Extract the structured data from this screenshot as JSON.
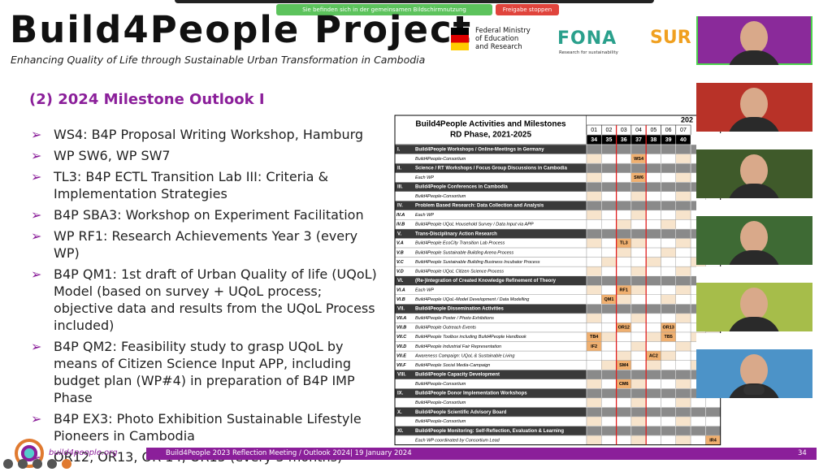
{
  "screen_share": {
    "notice": "Sie befinden sich in der gemeinsamen Bildschirmnutzung",
    "stop_button": "Freigabe stoppen"
  },
  "header": {
    "title": "Build4People Project",
    "subtitle": "Enhancing Quality of Life through Sustainable Urban Transformation in Cambodia"
  },
  "logos": {
    "ministry": [
      "Federal Ministry",
      "of Education",
      "and Research"
    ],
    "fona": "FONA",
    "fona_tagline": "Research for sustainability",
    "partial": "SUR"
  },
  "section_heading": "(2) 2024 Milestone Outlook I",
  "bullets": [
    "WS4: B4P Proposal Writing Workshop, Hamburg",
    "WP SW6, WP SW7",
    "TL3: B4P ECTL Transition Lab III: Criteria & Implementation Strategies",
    "B4P SBA3: Workshop on Experiment Facilitation",
    "WP RF1: Research Achievements Year 3 (every WP)",
    "B4P QM1: 1st draft of Urban Quality of life (UQoL) Model (based on survey + UQoL process; objective data and results from the UQoL Process included)",
    "B4P QM2: Feasibility study to grasp UQoL by means of Citizen Science Input APP, including budget plan (WP#4) in preparation of B4P IMP Phase",
    "B4P EX3: Photo Exhibition Sustainable Lifestyle Pioneers in Cambodia",
    "OR12, OR13, OR 14, OR15 (every 3 months)"
  ],
  "table": {
    "title": [
      "Build4People Activities and Milestones",
      "RD Phase, 2021-2025"
    ],
    "year": "202",
    "months": [
      "01",
      "02",
      "03",
      "04",
      "05",
      "06",
      "07"
    ],
    "weeks": [
      "34",
      "35",
      "36",
      "37",
      "38",
      "39",
      "40"
    ],
    "sections": [
      {
        "id": "I.",
        "label": "Build4People Workshops / Online-Meetings in Germany",
        "rows": [
          {
            "label": "Build4People-Consortium",
            "cells": [
              null,
              null,
              null,
              "WS4",
              null,
              null,
              null,
              null,
              null
            ]
          }
        ]
      },
      {
        "id": "II.",
        "label": "Science / RT Workshops / Focus Group Discussions in Cambodia",
        "rows": [
          {
            "label": "Each WP",
            "cells": [
              null,
              null,
              null,
              "SW6",
              null,
              null,
              null,
              null,
              null
            ]
          }
        ]
      },
      {
        "id": "III.",
        "label": "Build4People Conferences in Cambodia",
        "rows": [
          {
            "label": "Build4People-Consortium"
          }
        ]
      },
      {
        "id": "IV.",
        "label": "Problem Based Research: Data Collection and Analysis",
        "rows": [
          {
            "id": "IV.A",
            "label": "Each WP"
          },
          {
            "id": "IV.B",
            "label": "Build4People UQoL Household Survey / Data Input via APP"
          }
        ]
      },
      {
        "id": "V.",
        "label": "Trans-Disciplinary Action Research",
        "rows": [
          {
            "id": "V.A",
            "label": "Build4People EcoCity Transition Lab Process",
            "cells": [
              null,
              null,
              "TL3",
              null,
              null,
              null,
              null,
              null,
              null
            ]
          },
          {
            "id": "V.B",
            "label": "Build4People Sustainable Building Arena Process"
          },
          {
            "id": "V.C",
            "label": "Build4People Sustainable Building Business Incubator Process"
          },
          {
            "id": "V.D",
            "label": "Build4People UQoL Citizen Science Process"
          }
        ]
      },
      {
        "id": "VI.",
        "label": "(Re-)Integration of Created Knowledge Refinement of Theory",
        "rows": [
          {
            "id": "VI.A",
            "label": "Each WP",
            "cells": [
              null,
              null,
              "RF1",
              null,
              null,
              null,
              null,
              null,
              null
            ]
          },
          {
            "id": "VI.B",
            "label": "Build4People UQoL-Model Development / Data Modelling",
            "cells": [
              null,
              "QM1",
              null,
              null,
              null,
              null,
              null,
              null,
              null
            ]
          }
        ]
      },
      {
        "id": "VII.",
        "label": "Build4People Dissemination Activities",
        "rows": [
          {
            "id": "VII.A",
            "label": "Build4People Poster / Photo Exhibitions"
          },
          {
            "id": "VII.B",
            "label": "Build4People Outreach Events",
            "cells": [
              null,
              null,
              "OR12",
              null,
              null,
              "OR13",
              null,
              null,
              null
            ]
          },
          {
            "id": "VII.C",
            "label": "Build4People Toolbox including Build4People Handbook",
            "cells": [
              "TB4",
              null,
              null,
              null,
              null,
              "TB5",
              null,
              null,
              null
            ]
          },
          {
            "id": "VII.D",
            "label": "Build4People Industrial Fair Representation",
            "cells": [
              "IF2",
              null,
              null,
              null,
              null,
              null,
              null,
              null,
              null
            ]
          },
          {
            "id": "VII.E",
            "label": "Awareness Campaign: UQoL & Sustainable Living",
            "cells": [
              null,
              null,
              null,
              null,
              "AC2",
              null,
              null,
              null,
              null
            ]
          },
          {
            "id": "VII.F",
            "label": "Build4People Social Media-Campaign",
            "cells": [
              null,
              null,
              "SM4",
              null,
              null,
              null,
              null,
              null,
              null
            ]
          }
        ]
      },
      {
        "id": "VIII.",
        "label": "Build4People Capacity Development",
        "rows": [
          {
            "label": "Build4People-Consortium",
            "cells": [
              null,
              null,
              "CM6",
              null,
              null,
              null,
              null,
              null,
              null
            ]
          }
        ]
      },
      {
        "id": "IX.",
        "label": "Build4People Donor Implementation Workshops",
        "rows": [
          {
            "label": "Build4People-Consortium"
          }
        ]
      },
      {
        "id": "X.",
        "label": "Build4People Scientific Advisory Board",
        "rows": [
          {
            "label": "Build4People-Consortium"
          }
        ]
      },
      {
        "id": "XI.",
        "label": "Build4People Monitoring: Self-Reflection, Evaluation & Learning",
        "rows": [
          {
            "label": "Each WP coordinated by Consortium Lead",
            "cells": [
              null,
              null,
              null,
              null,
              null,
              null,
              null,
              null,
              "IR4"
            ]
          }
        ]
      }
    ]
  },
  "footer": {
    "website": "build4people.org",
    "caption": "Build4People 2023 Reflection Meeting / Outlook 2024| 19 January 2024",
    "page": "34"
  }
}
